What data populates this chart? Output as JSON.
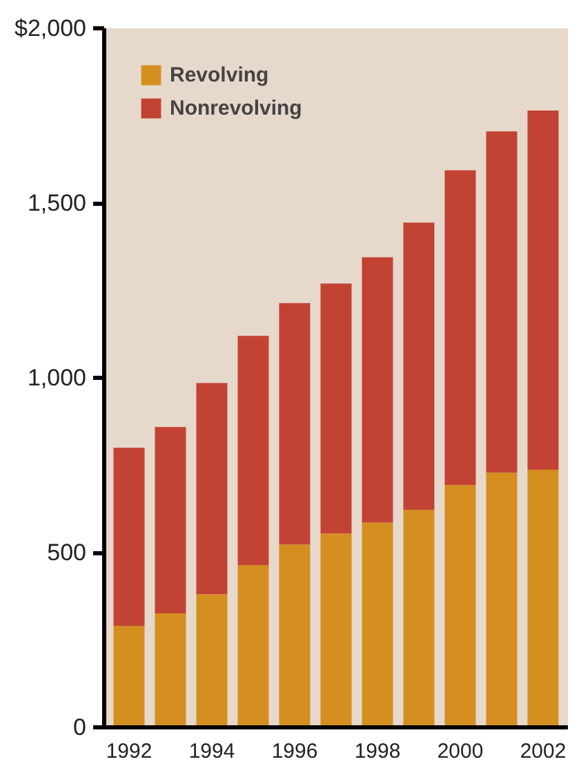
{
  "chart_data": {
    "type": "bar",
    "stacked": true,
    "categories": [
      "1992",
      null,
      "1994",
      null,
      "1996",
      null,
      "1998",
      null,
      "2000",
      null,
      "2002"
    ],
    "series": [
      {
        "name": "Revolving",
        "color": "#d48f20",
        "values": [
          290,
          326,
          381,
          464,
          523,
          555,
          586,
          622,
          693,
          729,
          737
        ]
      },
      {
        "name": "Nonrevolving",
        "color": "#c24333",
        "values": [
          510,
          533,
          604,
          656,
          691,
          715,
          759,
          822,
          901,
          976,
          1028
        ]
      }
    ],
    "ylim": [
      0,
      2000
    ],
    "yticks": [
      {
        "value": 0,
        "label": "0"
      },
      {
        "value": 500,
        "label": "500"
      },
      {
        "value": 1000,
        "label": "1,000"
      },
      {
        "value": 1500,
        "label": "1,500"
      },
      {
        "value": 2000,
        "label": "$2,000"
      }
    ],
    "grid": false,
    "legend": "top left"
  }
}
